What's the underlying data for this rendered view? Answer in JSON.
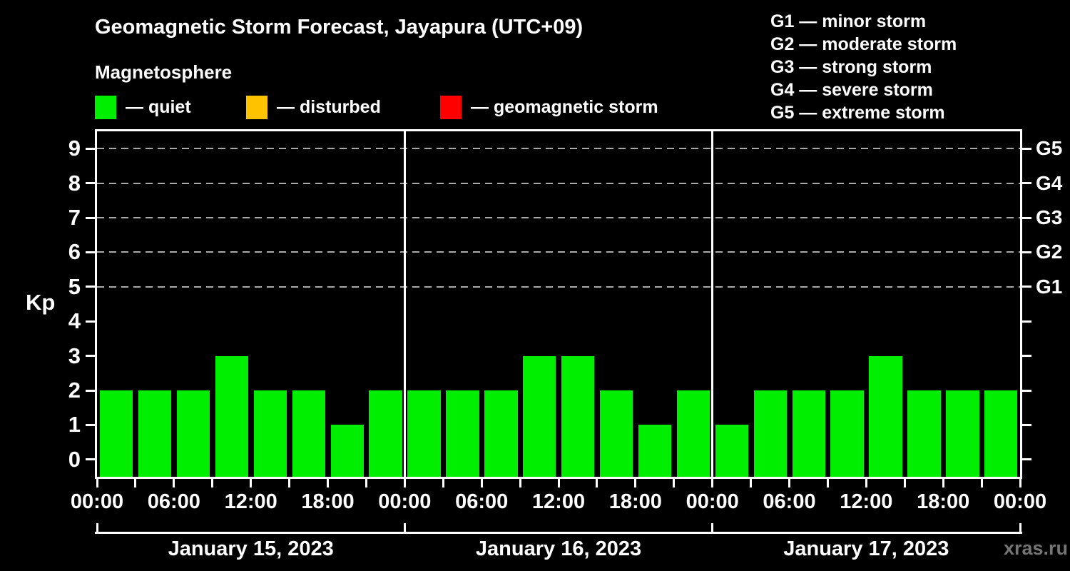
{
  "header": {
    "title": "Geomagnetic Storm Forecast, Jayapura (UTC+09)",
    "subtitle": "Magnetosphere"
  },
  "legend": {
    "items": [
      {
        "name": "quiet",
        "label": "— quiet",
        "color": "#00ee00"
      },
      {
        "name": "disturbed",
        "label": "— disturbed",
        "color": "#ffc200"
      },
      {
        "name": "storm",
        "label": "— geomagnetic storm",
        "color": "#ff0000"
      }
    ]
  },
  "g_scale": {
    "items": [
      {
        "label": "G1 — minor storm"
      },
      {
        "label": "G2 — moderate storm"
      },
      {
        "label": "G3 — strong storm"
      },
      {
        "label": "G4 — severe storm"
      },
      {
        "label": "G5 — extreme storm"
      }
    ]
  },
  "footer": {
    "watermark": "xras.ru"
  },
  "chart_data": {
    "type": "bar",
    "title": "Geomagnetic Storm Forecast, Jayapura (UTC+09)",
    "subtitle": "Magnetosphere",
    "ylabel": "Kp",
    "ylim": [
      -0.5,
      9.5
    ],
    "yticks": [
      0,
      1,
      2,
      3,
      4,
      5,
      6,
      7,
      8,
      9
    ],
    "grid_levels": [
      5,
      6,
      7,
      8,
      9
    ],
    "right_axis": [
      {
        "kp": 5,
        "label": "G1"
      },
      {
        "kp": 6,
        "label": "G2"
      },
      {
        "kp": 7,
        "label": "G3"
      },
      {
        "kp": 8,
        "label": "G4"
      },
      {
        "kp": 9,
        "label": "G5"
      }
    ],
    "interval_hours": 3,
    "x_tick_labels": [
      "00:00",
      "06:00",
      "12:00",
      "18:00"
    ],
    "days": [
      {
        "date": "January 15, 2023",
        "values": [
          2,
          2,
          2,
          3,
          2,
          2,
          1,
          2
        ]
      },
      {
        "date": "January 16, 2023",
        "values": [
          2,
          2,
          2,
          3,
          3,
          2,
          1,
          2
        ]
      },
      {
        "date": "January 17, 2023",
        "values": [
          1,
          2,
          2,
          2,
          3,
          2,
          2,
          2
        ]
      }
    ],
    "bar_color_rule": {
      "quiet_max": 3,
      "disturbed_max": 4
    },
    "colors": {
      "quiet": "#00ee00",
      "disturbed": "#ffc200",
      "storm": "#ff0000",
      "axis": "#ffffff",
      "grid": "#a9a9a9",
      "background": "#000000"
    },
    "legend_position": "top",
    "grid": "dashed horizontal at Kp 5-9 only"
  }
}
